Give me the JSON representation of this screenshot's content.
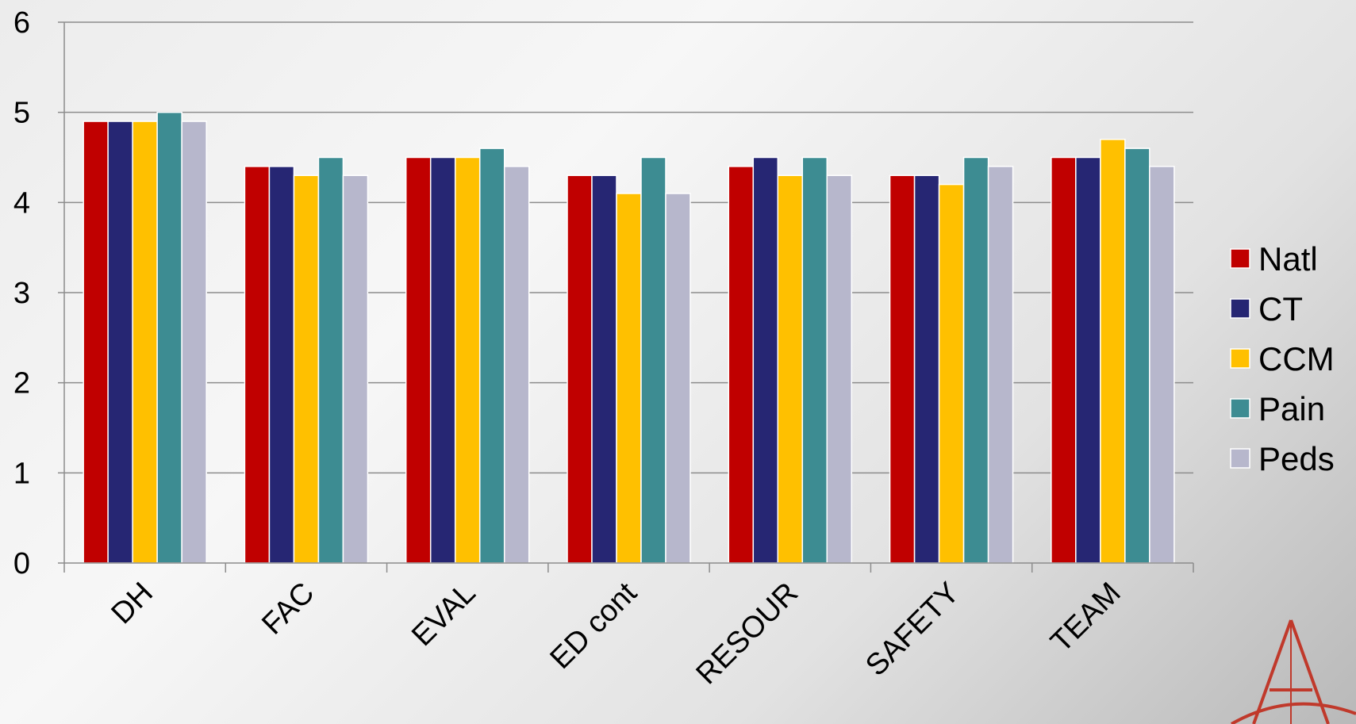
{
  "chart_data": {
    "type": "bar",
    "categories": [
      "DH",
      "FAC",
      "EVAL",
      "ED cont",
      "RESOUR",
      "SAFETY",
      "TEAM"
    ],
    "series": [
      {
        "name": "Natl",
        "color": "#c00000",
        "values": [
          4.9,
          4.4,
          4.5,
          4.3,
          4.4,
          4.3,
          4.5
        ]
      },
      {
        "name": "CT",
        "color": "#262673",
        "values": [
          4.9,
          4.4,
          4.5,
          4.3,
          4.5,
          4.3,
          4.5
        ]
      },
      {
        "name": "CCM",
        "color": "#ffc000",
        "values": [
          4.9,
          4.3,
          4.5,
          4.1,
          4.3,
          4.2,
          4.7
        ]
      },
      {
        "name": "Pain",
        "color": "#3d8c92",
        "values": [
          5.0,
          4.5,
          4.6,
          4.5,
          4.5,
          4.5,
          4.6
        ]
      },
      {
        "name": "Peds",
        "color": "#b7b7cc",
        "values": [
          4.9,
          4.3,
          4.4,
          4.1,
          4.3,
          4.4,
          4.4
        ]
      }
    ],
    "title": "",
    "xlabel": "",
    "ylabel": "",
    "ylim": [
      0,
      6
    ],
    "yticks": [
      "0",
      "1",
      "2",
      "3",
      "4",
      "5",
      "6"
    ],
    "grid": true,
    "legend_position": "right"
  }
}
